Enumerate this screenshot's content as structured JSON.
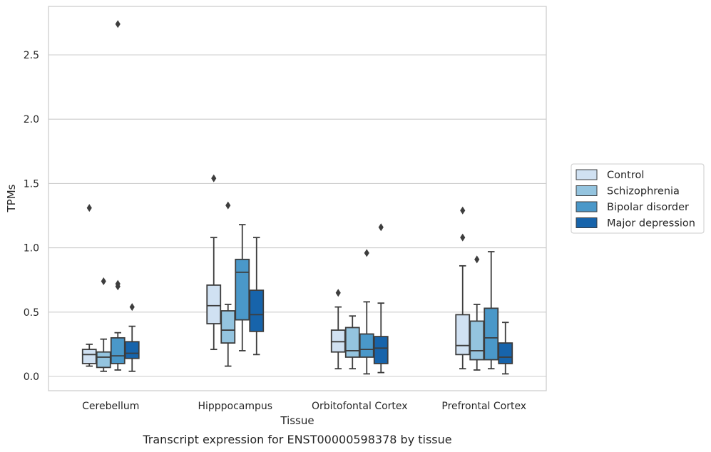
{
  "chart_data": {
    "type": "box",
    "caption": "Transcript expression for ENST00000598378 by tissue",
    "xlabel": "Tissue",
    "ylabel": "TPMs",
    "ylim": [
      -0.11,
      2.88
    ],
    "yticks": [
      0.0,
      0.5,
      1.0,
      1.5,
      2.0,
      2.5
    ],
    "ytick_labels": [
      "0.0",
      "0.5",
      "1.0",
      "1.5",
      "2.0",
      "2.5"
    ],
    "grid": "horizontal",
    "legend_position": "right",
    "categories": [
      "Cerebellum",
      "Hipppocampus",
      "Orbitofontal Cortex",
      "Prefrontal Cortex"
    ],
    "series": [
      {
        "name": "Control",
        "color": "#d0e1f2",
        "boxes": [
          {
            "whislo": 0.08,
            "q1": 0.1,
            "med": 0.17,
            "q3": 0.21,
            "whishi": 0.25,
            "fliers": [
              1.31
            ]
          },
          {
            "whislo": 0.21,
            "q1": 0.41,
            "med": 0.55,
            "q3": 0.71,
            "whishi": 1.08,
            "fliers": [
              1.54
            ]
          },
          {
            "whislo": 0.06,
            "q1": 0.19,
            "med": 0.27,
            "q3": 0.36,
            "whishi": 0.54,
            "fliers": [
              0.65
            ]
          },
          {
            "whislo": 0.06,
            "q1": 0.17,
            "med": 0.24,
            "q3": 0.48,
            "whishi": 0.86,
            "fliers": [
              1.08,
              1.29
            ]
          }
        ]
      },
      {
        "name": "Schizophrenia",
        "color": "#94c4df",
        "boxes": [
          {
            "whislo": 0.04,
            "q1": 0.07,
            "med": 0.15,
            "q3": 0.19,
            "whishi": 0.29,
            "fliers": [
              0.74
            ]
          },
          {
            "whislo": 0.08,
            "q1": 0.26,
            "med": 0.36,
            "q3": 0.51,
            "whishi": 0.56,
            "fliers": [
              1.33
            ]
          },
          {
            "whislo": 0.06,
            "q1": 0.15,
            "med": 0.2,
            "q3": 0.38,
            "whishi": 0.47,
            "fliers": []
          },
          {
            "whislo": 0.05,
            "q1": 0.13,
            "med": 0.2,
            "q3": 0.43,
            "whishi": 0.56,
            "fliers": [
              0.91
            ]
          }
        ]
      },
      {
        "name": "Bipolar disorder",
        "color": "#4a98c9",
        "boxes": [
          {
            "whislo": 0.05,
            "q1": 0.1,
            "med": 0.16,
            "q3": 0.3,
            "whishi": 0.34,
            "fliers": [
              0.7,
              0.72,
              2.74
            ]
          },
          {
            "whislo": 0.2,
            "q1": 0.44,
            "med": 0.81,
            "q3": 0.91,
            "whishi": 1.18,
            "fliers": []
          },
          {
            "whislo": 0.02,
            "q1": 0.15,
            "med": 0.21,
            "q3": 0.33,
            "whishi": 0.58,
            "fliers": [
              0.96
            ]
          },
          {
            "whislo": 0.06,
            "q1": 0.13,
            "med": 0.3,
            "q3": 0.53,
            "whishi": 0.97,
            "fliers": []
          }
        ]
      },
      {
        "name": "Major depression",
        "color": "#1764ab",
        "boxes": [
          {
            "whislo": 0.04,
            "q1": 0.14,
            "med": 0.18,
            "q3": 0.27,
            "whishi": 0.39,
            "fliers": [
              0.54
            ]
          },
          {
            "whislo": 0.17,
            "q1": 0.35,
            "med": 0.48,
            "q3": 0.67,
            "whishi": 1.08,
            "fliers": []
          },
          {
            "whislo": 0.03,
            "q1": 0.1,
            "med": 0.22,
            "q3": 0.31,
            "whishi": 0.57,
            "fliers": [
              1.16
            ]
          },
          {
            "whislo": 0.02,
            "q1": 0.1,
            "med": 0.15,
            "q3": 0.26,
            "whishi": 0.42,
            "fliers": []
          }
        ]
      }
    ]
  }
}
